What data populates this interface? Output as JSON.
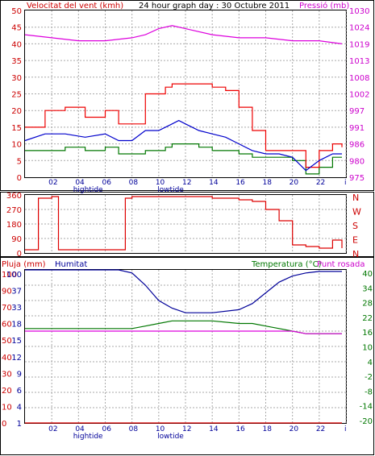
{
  "header": {
    "wind_label": "Velocitat del vent (kmh)",
    "title": "24 hour graph day : 30 Octubre 2011",
    "pressure_label": "Pressió (mb)"
  },
  "x_axis": {
    "ticks": [
      "02",
      "04",
      "06",
      "08",
      "10",
      "12",
      "14",
      "16",
      "18",
      "20",
      "22",
      "i"
    ],
    "tide_labels": {
      "high": "hightide",
      "low": "lowtide"
    }
  },
  "panel2": {
    "direction_ticks": [
      "360",
      "270",
      "180",
      "90",
      "0"
    ],
    "compass_letters": [
      "N",
      "W",
      "S",
      "E",
      "N"
    ]
  },
  "panel3": {
    "rain_label": "Pluja (mm)",
    "humidity_label": "Humitat",
    "temp_label": "Temperatura (°C)",
    "dew_label": "Punt rosada",
    "rain_ticks": [
      "100",
      "90",
      "70",
      "60",
      "50",
      "40",
      "30",
      "20",
      "10",
      "0"
    ],
    "humidity_ticks": [
      "100",
      "37",
      "33",
      "18",
      "15",
      "12",
      "9",
      "6",
      "4",
      "1"
    ],
    "temp_ticks": [
      "40",
      "34",
      "28",
      "22",
      "16",
      "10",
      "4",
      "-2",
      "-8",
      "-14",
      "-20"
    ]
  },
  "colors": {
    "wind_gust": "#ee0000",
    "wind_avg": "#0000cc",
    "wind_min": "#007700",
    "pressure": "#dd00dd",
    "direction": "#dd0000",
    "humidity": "#000099",
    "temperature": "#007700",
    "dewpoint": "#dd00dd",
    "rain": "#dd0000",
    "grid": "#aaaaaa",
    "label_red": "#cc0000",
    "label_blue": "#000099",
    "label_green": "#007700",
    "label_magenta": "#cc00cc"
  },
  "chart_data": [
    {
      "type": "line",
      "title": "24 hour graph day : 30 Octubre 2011",
      "x": [
        0,
        1.5,
        3,
        4.5,
        6,
        7,
        8,
        9,
        10,
        10.5,
        11,
        11.5,
        12,
        13,
        14,
        15,
        16,
        17,
        18,
        19,
        20,
        21,
        22,
        23,
        23.7
      ],
      "ylim": [
        0,
        50
      ],
      "ylabel": "Velocitat del vent (kmh)",
      "series": [
        {
          "values": [
            15,
            20,
            21,
            18,
            20,
            16,
            16,
            25,
            25,
            27,
            28,
            28,
            28,
            28,
            27,
            26,
            21,
            14,
            8,
            8,
            8,
            3,
            8,
            10,
            9
          ]
        },
        {
          "values": [
            11,
            13,
            13,
            12,
            13,
            11,
            11,
            14,
            14,
            15,
            16,
            17,
            16,
            14,
            13,
            12,
            10,
            8,
            7,
            7,
            6,
            2,
            5,
            7,
            7
          ]
        },
        {
          "values": [
            8,
            8,
            9,
            8,
            9,
            7,
            7,
            8,
            8,
            9,
            10,
            10,
            10,
            9,
            8,
            8,
            7,
            6,
            6,
            6,
            5,
            1,
            3,
            6,
            6
          ]
        }
      ]
    },
    {
      "type": "line",
      "x": [
        0,
        2,
        4,
        6,
        8,
        9,
        10,
        11,
        12,
        14,
        16,
        18,
        20,
        22,
        23.7
      ],
      "y2lim": [
        975,
        1030
      ],
      "y2label": "Pressió (mb)",
      "series": [
        {
          "values": [
            1022,
            1021,
            1020,
            1020,
            1021,
            1022,
            1024,
            1025,
            1024,
            1022,
            1021,
            1021,
            1020,
            1020,
            1019
          ]
        }
      ]
    },
    {
      "type": "line",
      "x": [
        0,
        1,
        2,
        2.5,
        3,
        6,
        7,
        7.5,
        8,
        9,
        10,
        11,
        12,
        14,
        16,
        17,
        18,
        19,
        20,
        21,
        22,
        23,
        23.7
      ],
      "ylim": [
        0,
        360
      ],
      "series": [
        {
          "values": [
            20,
            340,
            350,
            20,
            20,
            20,
            20,
            340,
            350,
            350,
            350,
            350,
            350,
            340,
            330,
            320,
            270,
            200,
            50,
            40,
            30,
            80,
            30
          ]
        }
      ]
    },
    {
      "type": "line",
      "x": [
        0,
        4,
        7,
        8,
        9,
        10,
        11,
        12,
        14,
        16,
        17,
        18,
        19,
        20,
        21,
        22,
        23,
        23.7
      ],
      "ylim": [
        0,
        100
      ],
      "series": [
        {
          "values": [
            100,
            100,
            100,
            98,
            90,
            80,
            75,
            72,
            72,
            74,
            78,
            85,
            92,
            96,
            98,
            99,
            99,
            99
          ]
        }
      ]
    },
    {
      "type": "line",
      "x": [
        0,
        2,
        4,
        6,
        8,
        9,
        10,
        11,
        12,
        14,
        16,
        17,
        18,
        19,
        20,
        21,
        22,
        23.7
      ],
      "ylim": [
        -20,
        40
      ],
      "series": [
        {
          "values": [
            17,
            17,
            17,
            17,
            17,
            18,
            19,
            20,
            20,
            20,
            19,
            19,
            18,
            17,
            16,
            15,
            15,
            15
          ]
        },
        {
          "values": [
            16,
            16,
            16,
            16,
            16,
            16,
            16,
            16,
            16,
            16,
            16,
            16,
            16,
            16,
            16,
            15,
            15,
            15
          ]
        }
      ]
    },
    {
      "type": "line",
      "x": [
        0,
        23.7
      ],
      "ylim": [
        0,
        100
      ],
      "series": [
        {
          "values": [
            0,
            0
          ]
        }
      ]
    }
  ]
}
